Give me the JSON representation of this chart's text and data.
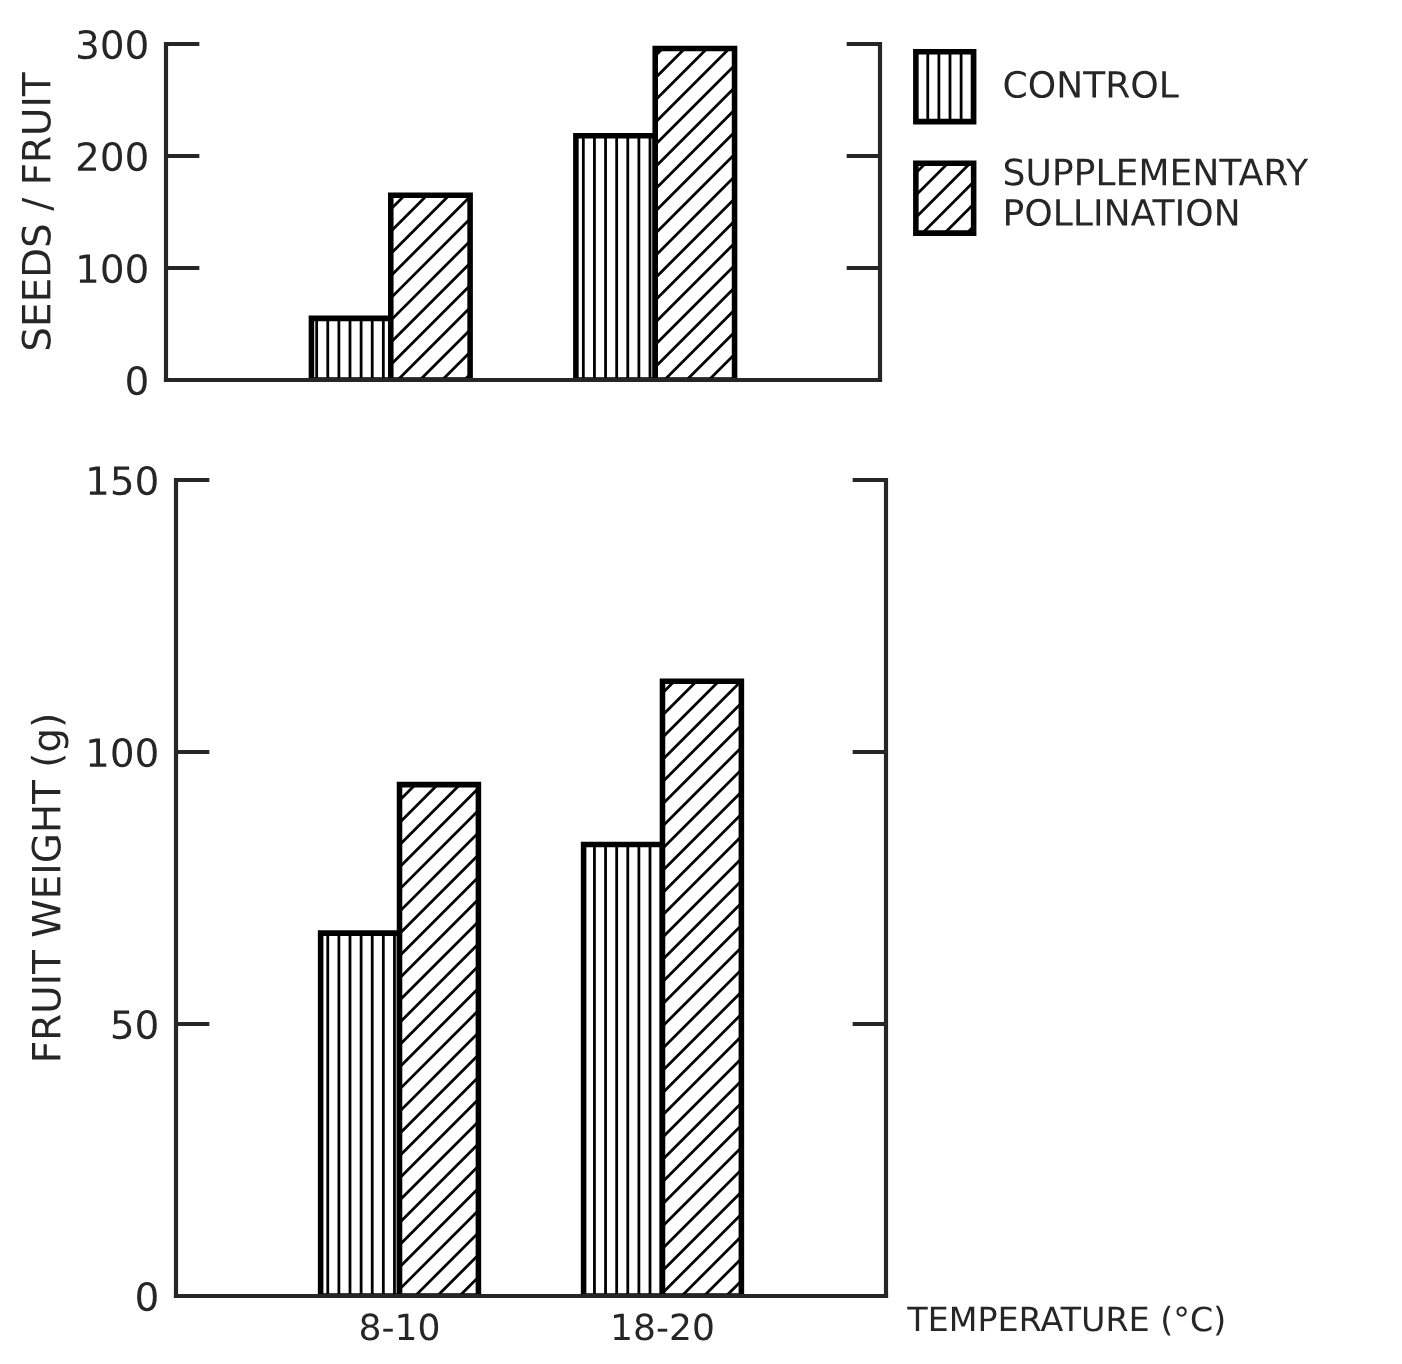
{
  "chart_data": [
    {
      "type": "bar",
      "ylabel": "SEEDS / FRUIT",
      "categories": [
        null,
        null
      ],
      "ylim": [
        0,
        300
      ],
      "yticks": [
        0,
        100,
        200,
        300
      ],
      "tick_labels": "y",
      "legend": "right",
      "grid": false,
      "series": [
        {
          "name": "CONTROL",
          "color": "#000000",
          "values": [
            55,
            218
          ]
        },
        {
          "name": "SUPPLEMENTARY\nPOLLINATION",
          "color": "#000000",
          "values": [
            165,
            296
          ]
        }
      ]
    },
    {
      "type": "bar",
      "ylabel": "FRUIT WEIGHT (g)",
      "xlabel": "TEMPERATURE (°C)",
      "categories": [
        "8-10",
        "18-20"
      ],
      "ylim": [
        0,
        150
      ],
      "yticks": [
        0,
        50,
        100,
        150
      ],
      "grid": false,
      "series": [
        {
          "color": "#000000",
          "values": [
            66.7,
            83
          ]
        },
        {
          "color": "#000000",
          "values": [
            94,
            113
          ]
        }
      ]
    }
  ]
}
